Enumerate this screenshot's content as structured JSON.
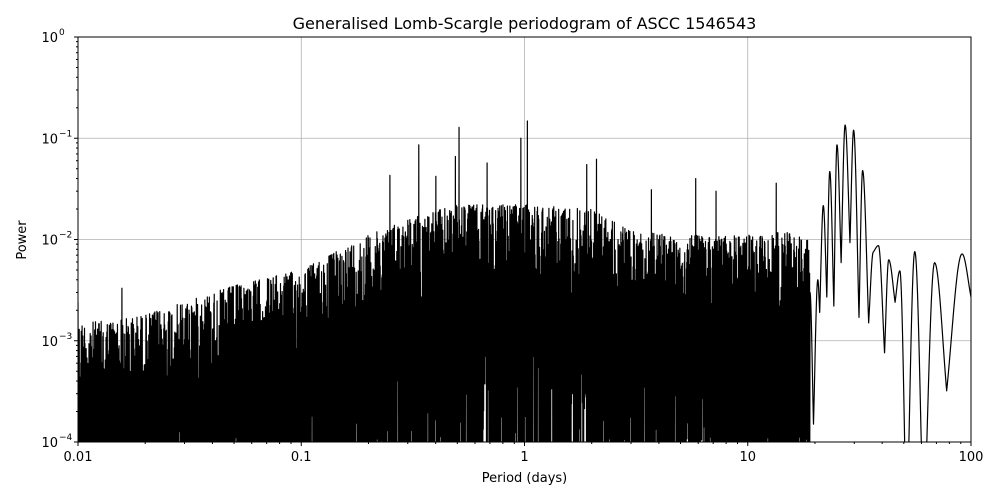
{
  "chart_data": {
    "type": "line",
    "title": "Generalised Lomb-Scargle periodogram of ASCC 1546543",
    "xlabel": "Period (days)",
    "ylabel": "Power",
    "xscale": "log",
    "yscale": "log",
    "xlim": [
      0.01,
      100
    ],
    "ylim": [
      0.0001,
      1
    ],
    "grid": true,
    "x_ticks": [
      {
        "value": 0.01,
        "label": "0.01"
      },
      {
        "value": 0.1,
        "label": "0.1"
      },
      {
        "value": 1,
        "label": "1"
      },
      {
        "value": 10,
        "label": "10"
      },
      {
        "value": 100,
        "label": "100"
      }
    ],
    "y_ticks": [
      {
        "value": 0.0001,
        "base": "10",
        "exp": "−4"
      },
      {
        "value": 0.001,
        "base": "10",
        "exp": "−3"
      },
      {
        "value": 0.01,
        "base": "10",
        "exp": "−2"
      },
      {
        "value": 0.1,
        "base": "10",
        "exp": "−1"
      },
      {
        "value": 1,
        "base": "10",
        "exp": "0"
      }
    ],
    "line_color": "#000000",
    "grid_color": "#b0b0b0",
    "noisy_region_envelope": [
      [
        0.01,
        0.0015
      ],
      [
        0.015,
        0.0016
      ],
      [
        0.02,
        0.0018
      ],
      [
        0.03,
        0.0024
      ],
      [
        0.05,
        0.0035
      ],
      [
        0.1,
        0.005
      ],
      [
        0.15,
        0.008
      ],
      [
        0.2,
        0.011
      ],
      [
        0.3,
        0.016
      ],
      [
        0.5,
        0.022
      ],
      [
        1,
        0.022
      ],
      [
        2,
        0.02
      ],
      [
        3,
        0.012
      ],
      [
        5,
        0.011
      ],
      [
        10,
        0.011
      ],
      [
        15,
        0.012
      ],
      [
        19,
        0.01
      ]
    ],
    "prominent_peaks": [
      [
        0.01,
        0.0024
      ],
      [
        0.0157,
        0.0033
      ],
      [
        0.25,
        0.043
      ],
      [
        0.336,
        0.086
      ],
      [
        0.4,
        0.042
      ],
      [
        0.49,
        0.066
      ],
      [
        0.509,
        0.128
      ],
      [
        0.68,
        0.057
      ],
      [
        0.964,
        0.1
      ],
      [
        1.03,
        0.148
      ],
      [
        1.9,
        0.055
      ],
      [
        2.1,
        0.062
      ],
      [
        3.7,
        0.031
      ],
      [
        5.85,
        0.04
      ],
      [
        7.2,
        0.03
      ],
      [
        13.4,
        0.036
      ]
    ],
    "long_period_curve": [
      [
        19.0,
        0.003
      ],
      [
        19.7,
        0.00015
      ],
      [
        20.6,
        0.004
      ],
      [
        21.0,
        0.0019
      ],
      [
        21.8,
        0.0216
      ],
      [
        22.6,
        0.0027
      ],
      [
        23.3,
        0.047
      ],
      [
        24.3,
        0.0022
      ],
      [
        25.1,
        0.086
      ],
      [
        26.2,
        0.0059
      ],
      [
        27.3,
        0.135
      ],
      [
        28.7,
        0.0093
      ],
      [
        29.8,
        0.12
      ],
      [
        31.5,
        0.0017
      ],
      [
        32.7,
        0.048
      ],
      [
        34.8,
        0.0015
      ],
      [
        36.5,
        0.0075
      ],
      [
        38.5,
        0.0087
      ],
      [
        41.0,
        0.00076
      ],
      [
        42.8,
        0.0063
      ],
      [
        45.7,
        0.0024
      ],
      [
        48.0,
        0.0049
      ],
      [
        51.5,
        1e-05
      ],
      [
        56.0,
        0.0076
      ],
      [
        61.4,
        1e-05
      ],
      [
        68.7,
        0.0059
      ],
      [
        77.8,
        0.00032
      ],
      [
        91.2,
        0.0072
      ],
      [
        100,
        0.0027
      ]
    ]
  }
}
